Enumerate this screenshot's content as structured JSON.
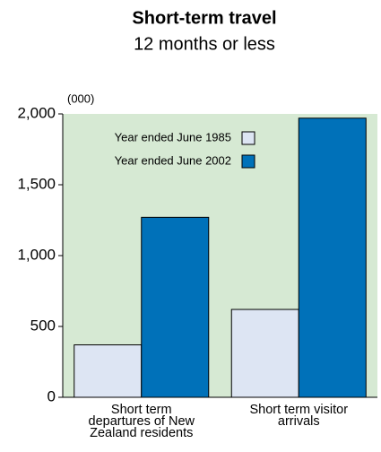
{
  "chart_data": {
    "type": "bar",
    "title": "Short-term travel",
    "subtitle": "12 months or less",
    "y_unit": "(000)",
    "categories": [
      [
        "Short term",
        "departures of New",
        "Zealand residents"
      ],
      [
        "Short term visitor",
        "arrivals"
      ]
    ],
    "series": [
      {
        "name": "Year ended June 1985",
        "color": "#dde5f3",
        "values": [
          370,
          620
        ]
      },
      {
        "name": "Year ended June 2002",
        "color": "#0071b9",
        "values": [
          1270,
          1970
        ]
      }
    ],
    "ylim": [
      0,
      2000
    ],
    "yticks": [
      0,
      500,
      {
        "value": 1000,
        "label": "1,000"
      },
      {
        "value": 1500,
        "label": "1,500"
      },
      {
        "value": 2000,
        "label": "2,000"
      }
    ],
    "background": "#d6e9d3",
    "grid": false
  }
}
